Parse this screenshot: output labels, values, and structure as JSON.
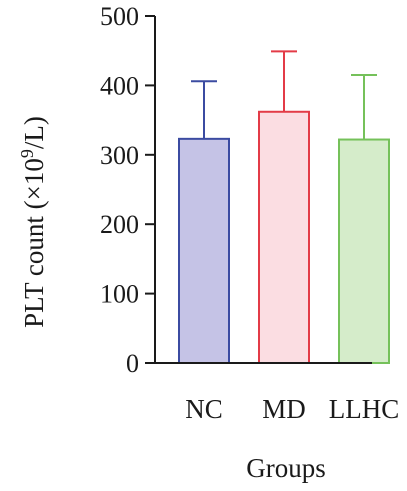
{
  "chart_data": {
    "type": "bar",
    "categories": [
      "NC",
      "MD",
      "LLHC"
    ],
    "values": [
      323,
      362,
      322
    ],
    "error_upper": [
      406,
      449,
      415
    ],
    "xlabel": "Groups",
    "ylabel_prefix": "PLT count (×10",
    "ylabel_sup": "9",
    "ylabel_suffix": "/L)",
    "ylim": [
      0,
      500
    ],
    "yticks": [
      0,
      100,
      200,
      300,
      400,
      500
    ],
    "ytick_labels": [
      "0",
      "100",
      "200",
      "300",
      "400",
      "500"
    ],
    "colors": {
      "fill": [
        "#c5c3e6",
        "#fbdde2",
        "#d5ecca"
      ],
      "stroke": [
        "#3b4ba1",
        "#e33b47",
        "#75c15a"
      ]
    },
    "grid": false,
    "legend": "none"
  }
}
